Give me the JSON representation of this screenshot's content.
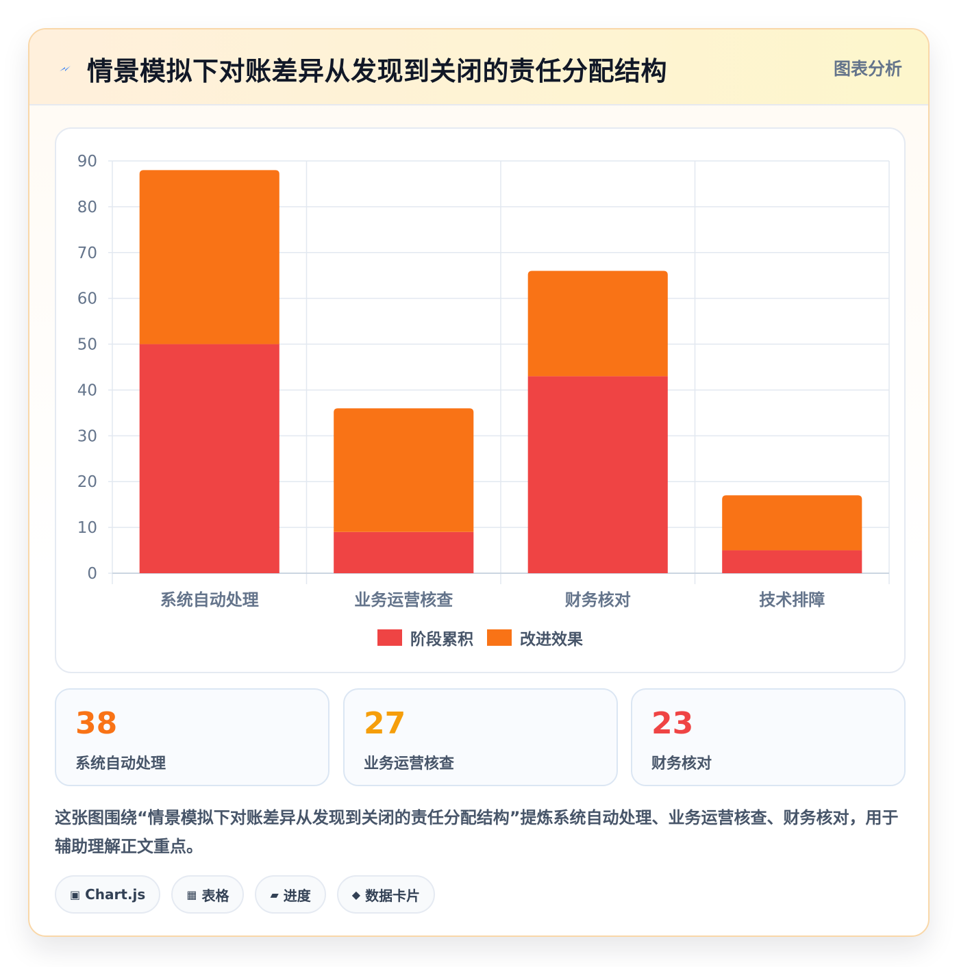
{
  "header": {
    "title": "情景模拟下对账差异从发现到关闭的责任分配结构",
    "tag": "图表分析"
  },
  "chart_data": {
    "type": "bar",
    "stacked": true,
    "categories": [
      "系统自动处理",
      "业务运营核查",
      "财务核对",
      "技术排障"
    ],
    "series": [
      {
        "name": "阶段累积",
        "color": "#ef4444",
        "values": [
          50,
          9,
          43,
          5
        ]
      },
      {
        "name": "改进效果",
        "color": "#f97316",
        "values": [
          38,
          27,
          23,
          12
        ]
      }
    ],
    "ylim": [
      0,
      90
    ],
    "yticks": [
      0,
      10,
      20,
      30,
      40,
      50,
      60,
      70,
      80,
      90
    ],
    "grid": true,
    "legend": "bottom"
  },
  "stats": [
    {
      "value": "38",
      "label": "系统自动处理",
      "color": "#f97316"
    },
    {
      "value": "27",
      "label": "业务运营核查",
      "color": "#f59e0b"
    },
    {
      "value": "23",
      "label": "财务核对",
      "color": "#ef4444"
    }
  ],
  "description": "这张图围绕“情景模拟下对账差异从发现到关闭的责任分配结构”提炼系统自动处理、业务运营核查、财务核对，用于辅助理解正文重点。",
  "chips": [
    {
      "icon": "▣",
      "label": "Chart.js"
    },
    {
      "icon": "▦",
      "label": "表格"
    },
    {
      "icon": "▰",
      "label": "进度"
    },
    {
      "icon": "◆",
      "label": "数据卡片"
    }
  ]
}
